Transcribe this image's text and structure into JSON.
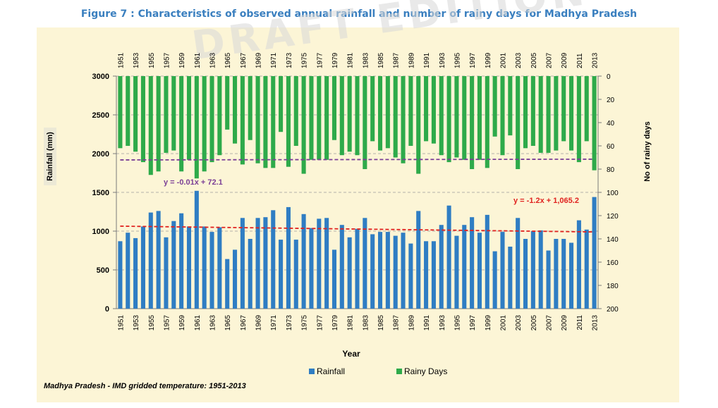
{
  "title": "Figure 7 : Characteristics of observed annual rainfall and number of rainy days for Madhya Pradesh",
  "watermark": "DRAFT EDITION",
  "source_note": "Madhya Pradesh - IMD gridded temperature: 1951-2013",
  "chart_data": {
    "type": "bar",
    "xlabel": "Year",
    "ylabel": "Rainfall (mm)",
    "y2label": "No of rainy days",
    "ylim": [
      0,
      3000
    ],
    "y2lim": [
      0,
      200
    ],
    "y2_inverted": true,
    "yticks": [
      0,
      500,
      1000,
      1500,
      2000,
      2500,
      3000
    ],
    "y2ticks": [
      0,
      20,
      40,
      60,
      80,
      100,
      120,
      140,
      160,
      180,
      200
    ],
    "grid": "horizontal dashed",
    "legend_position": "bottom",
    "x": [
      1951,
      1952,
      1953,
      1954,
      1955,
      1956,
      1957,
      1958,
      1959,
      1960,
      1961,
      1962,
      1963,
      1964,
      1965,
      1966,
      1967,
      1968,
      1969,
      1970,
      1971,
      1972,
      1973,
      1974,
      1975,
      1976,
      1977,
      1978,
      1979,
      1980,
      1981,
      1982,
      1983,
      1984,
      1985,
      1986,
      1987,
      1988,
      1989,
      1990,
      1991,
      1992,
      1993,
      1994,
      1995,
      1996,
      1997,
      1998,
      1999,
      2000,
      2001,
      2002,
      2003,
      2004,
      2005,
      2006,
      2007,
      2008,
      2009,
      2010,
      2011,
      2012,
      2013
    ],
    "xtick_labels": [
      "1951",
      "1953",
      "1955",
      "1957",
      "1959",
      "1961",
      "1963",
      "1965",
      "1967",
      "1969",
      "1971",
      "1973",
      "1975",
      "1977",
      "1979",
      "1981",
      "1983",
      "1985",
      "1987",
      "1989",
      "1991",
      "1993",
      "1995",
      "1997",
      "1999",
      "2001",
      "2003",
      "2005",
      "2007",
      "2009",
      "2011",
      "2013"
    ],
    "series": [
      {
        "name": "Rainfall",
        "axis": "left",
        "color": "#2f7dc3",
        "values": [
          870,
          980,
          910,
          1060,
          1240,
          1260,
          920,
          1130,
          1230,
          1060,
          1520,
          1060,
          990,
          1050,
          640,
          760,
          1170,
          900,
          1170,
          1180,
          1270,
          890,
          1310,
          890,
          1220,
          1040,
          1160,
          1170,
          760,
          1080,
          920,
          1030,
          1170,
          960,
          990,
          990,
          940,
          980,
          840,
          1260,
          870,
          870,
          1080,
          1330,
          940,
          1080,
          1180,
          980,
          1210,
          740,
          990,
          800,
          1170,
          900,
          1000,
          1010,
          750,
          900,
          900,
          850,
          1140,
          1020,
          1440
        ]
      },
      {
        "name": "Rainy Days",
        "axis": "right",
        "color": "#2eaa4a",
        "values": [
          62,
          60,
          65,
          74,
          85,
          82,
          66,
          64,
          82,
          72,
          88,
          82,
          74,
          68,
          46,
          58,
          76,
          55,
          75,
          79,
          79,
          48,
          78,
          60,
          84,
          72,
          72,
          72,
          55,
          68,
          65,
          68,
          80,
          56,
          64,
          62,
          70,
          75,
          60,
          84,
          56,
          58,
          68,
          74,
          70,
          72,
          80,
          72,
          79,
          52,
          68,
          51,
          80,
          62,
          60,
          66,
          66,
          64,
          56,
          64,
          74,
          56,
          81
        ]
      }
    ],
    "trendlines": [
      {
        "series": "Rainy Days",
        "equation": "y = -0.01x + 72.1",
        "slope": -0.01,
        "intercept": 72.1,
        "color": "#7b3f96"
      },
      {
        "series": "Rainfall",
        "equation": "y = -1.2x + 1,065.2",
        "slope": -1.2,
        "intercept": 1065.2,
        "color": "#e0221f"
      }
    ]
  }
}
